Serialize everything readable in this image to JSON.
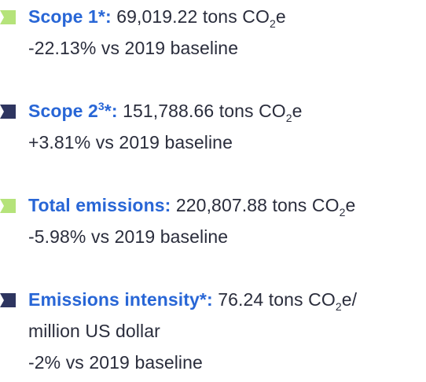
{
  "colors": {
    "label": "#2866d6",
    "text": "#2a2d3c",
    "marker_green": "#b5e37a",
    "marker_navy": "#2e3560"
  },
  "icons": {
    "marker_shape": "tab-marker-icon"
  },
  "items": [
    {
      "marker_color": "green",
      "label": "Scope 1*:",
      "label_sup": "",
      "label_suffix": "",
      "value": "69,019.22 tons CO",
      "sub": "2",
      "unit_tail": "e",
      "change": "-22.13% vs 2019 baseline"
    },
    {
      "marker_color": "navy",
      "label": "Scope 2",
      "label_sup": "3",
      "label_suffix": "*:",
      "value": "151,788.66 tons CO",
      "sub": "2",
      "unit_tail": "e",
      "change": "+3.81% vs 2019 baseline"
    },
    {
      "marker_color": "green",
      "label": "Total emissions:",
      "label_sup": "",
      "label_suffix": "",
      "value": "220,807.88 tons CO",
      "sub": "2",
      "unit_tail": "e",
      "change": "-5.98% vs 2019 baseline"
    },
    {
      "marker_color": "navy",
      "label": "Emissions intensity*:",
      "label_sup": "",
      "label_suffix": "",
      "value": "76.24 tons CO",
      "sub": "2",
      "unit_tail": "e/",
      "continuation": "million US dollar",
      "change": "-2% vs 2019 baseline"
    }
  ]
}
